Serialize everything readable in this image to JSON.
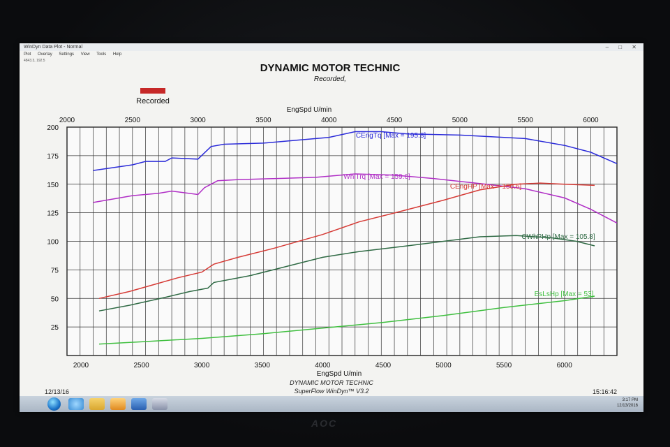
{
  "window": {
    "title": "WinDyn Data Plot - Normal",
    "controls": "–  □  ✕",
    "menu": [
      "Plot",
      "Overlay",
      "Settings",
      "View",
      "Tools",
      "Help"
    ],
    "coords": "4843.3, 192.5"
  },
  "chart_data": {
    "type": "line",
    "title": "DYNAMIC MOTOR TECHNIC",
    "subtitle": "Recorded,",
    "legend": {
      "label": "Recorded",
      "color": "#c62828",
      "placement": "top-left"
    },
    "x_top_label": "EngSpd U/min",
    "x_top_range": [
      2000,
      6200
    ],
    "x_top_ticks": [
      2000,
      2500,
      3000,
      3500,
      4000,
      4500,
      5000,
      5500,
      6000
    ],
    "x_bottom_label": "EngSpd U/min",
    "x_bottom_range": [
      2000,
      6400
    ],
    "x_bottom_ticks": [
      2000,
      2500,
      3000,
      3500,
      4000,
      4500,
      5000,
      5500,
      6000
    ],
    "y_range": [
      0,
      200
    ],
    "y_ticks": [
      25,
      50,
      75,
      100,
      125,
      150,
      175,
      200
    ],
    "grid": true,
    "series": [
      {
        "name": "CEngTq [Max = 195.8]",
        "color": "#2b2bd9",
        "axis": "top",
        "x": [
          2200,
          2500,
          2600,
          2750,
          2800,
          3000,
          3100,
          3200,
          3500,
          3700,
          4000,
          4200,
          4400,
          4600,
          5000,
          5500,
          5800,
          6000,
          6200
        ],
        "y": [
          162,
          167,
          170,
          170,
          173,
          172,
          183,
          185,
          186,
          188,
          191,
          196,
          196,
          194,
          193,
          190,
          184,
          178,
          168
        ]
      },
      {
        "name": "WhlTrq [Max = 159.6]",
        "color": "#b02ec6",
        "axis": "top",
        "x": [
          2200,
          2500,
          2700,
          2800,
          3000,
          3050,
          3150,
          3300,
          3600,
          3900,
          4200,
          4500,
          4800,
          5200,
          5500,
          5800,
          6000,
          6200
        ],
        "y": [
          134,
          140,
          142,
          144,
          141,
          147,
          153,
          154,
          155,
          156,
          159,
          158,
          155,
          150,
          146,
          138,
          128,
          116
        ]
      },
      {
        "name": "CEngHP [Max = 150.6]",
        "color": "#d63b36",
        "axis": "bottom",
        "x": [
          2150,
          2400,
          2600,
          2800,
          3000,
          3100,
          3300,
          3600,
          4000,
          4300,
          4600,
          5000,
          5300,
          5600,
          5800,
          6000,
          6250
        ],
        "y": [
          50,
          56,
          62,
          68,
          73,
          80,
          86,
          94,
          106,
          117,
          125,
          136,
          145,
          150,
          151,
          150,
          149
        ]
      },
      {
        "name": "CWhPHp [Max = 105.8]",
        "color": "#2f6a44",
        "axis": "bottom",
        "x": [
          2150,
          2400,
          2700,
          2900,
          3050,
          3100,
          3400,
          3700,
          4000,
          4300,
          4700,
          5000,
          5300,
          5600,
          5900,
          6100,
          6250
        ],
        "y": [
          39,
          44,
          51,
          56,
          59,
          64,
          70,
          78,
          86,
          91,
          96,
          100,
          104,
          105,
          103,
          100,
          96
        ]
      },
      {
        "name": "EsLsHp [Max = 53]",
        "color": "#3fbf3f",
        "axis": "bottom",
        "x": [
          2150,
          2500,
          3000,
          3500,
          4000,
          4500,
          5000,
          5500,
          6000,
          6250
        ],
        "y": [
          10,
          12,
          15,
          19,
          24,
          29,
          35,
          42,
          48,
          52
        ]
      }
    ]
  },
  "footer": {
    "date": "12/13/16",
    "time": "15:16:42",
    "line1": "DYNAMIC MOTOR TECHNIC",
    "line2": "SuperFlow WinDyn™ V3.2"
  },
  "taskbar": {
    "clock_time": "3:17 PM",
    "clock_date": "12/13/2016"
  },
  "monitor": {
    "brand": "AOC"
  }
}
